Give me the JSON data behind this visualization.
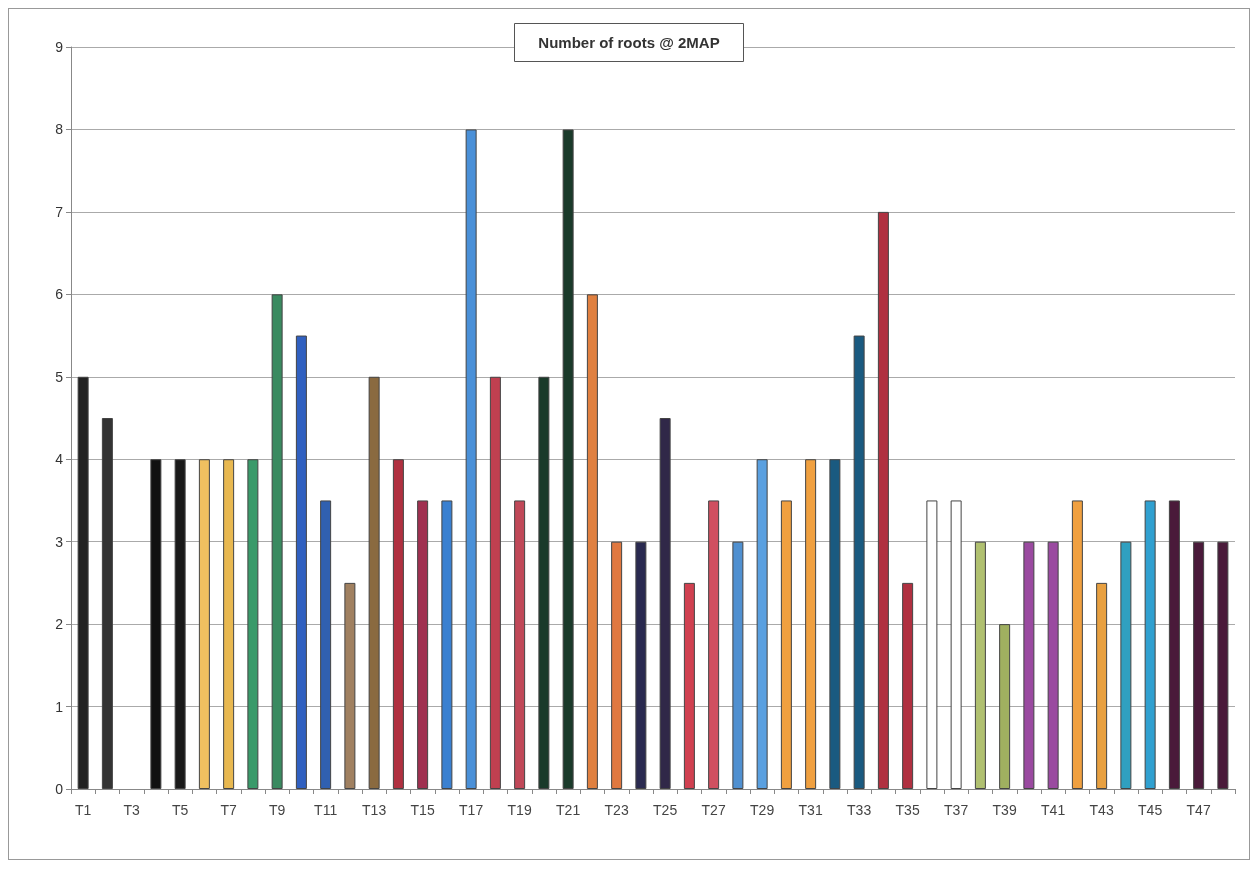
{
  "chart_data": {
    "type": "bar",
    "title": "Number of roots @ 2MAP",
    "categories": [
      "T1",
      null,
      "T3",
      null,
      "T5",
      null,
      "T7",
      null,
      "T9",
      null,
      "T11",
      null,
      "T13",
      null,
      "T15",
      null,
      "T17",
      null,
      "T19",
      null,
      "T21",
      null,
      "T23",
      null,
      "T25",
      null,
      "T27",
      null,
      "T29",
      null,
      "T31",
      null,
      "T33",
      null,
      "T35",
      null,
      "T37",
      null,
      "T39",
      null,
      "T41",
      null,
      "T43",
      null,
      "T45",
      null,
      "T47",
      null
    ],
    "values": [
      5,
      4.5,
      null,
      4,
      4,
      4,
      4,
      4,
      6,
      5.5,
      3.5,
      2.5,
      5,
      4,
      3.5,
      3.5,
      8,
      5,
      3.5,
      5,
      8,
      6,
      3,
      3,
      4.5,
      2.5,
      3.5,
      3,
      4,
      3.5,
      4,
      4,
      5.5,
      7,
      2.5,
      3.5,
      3.5,
      3,
      2,
      3,
      3,
      3.5,
      2.5,
      3,
      3.5,
      3.5,
      3,
      3
    ],
    "colors": [
      "#222222",
      "#333333",
      "#222222",
      "#111111",
      "#1a1a1a",
      "#f0c060",
      "#e8b850",
      "#3a9a6a",
      "#3a8a60",
      "#3060c0",
      "#3060b0",
      "#a08060",
      "#8a6a40",
      "#b03040",
      "#a03050",
      "#3a80d0",
      "#4a90d8",
      "#c04050",
      "#c04858",
      "#1a3a2a",
      "#1a3a2a",
      "#e08040",
      "#e07840",
      "#2a2a50",
      "#302848",
      "#d04050",
      "#d05060",
      "#5090d0",
      "#5aa0e0",
      "#f0a040",
      "#f0a040",
      "#1a5a80",
      "#1a5a80",
      "#b03040",
      "#b03040",
      "#ffffff",
      "#ffffff",
      "#b0c070",
      "#a0b060",
      "#9a4aa0",
      "#9a4aa0",
      "#f0a040",
      "#e8a040",
      "#30a0c0",
      "#30a0d0",
      "#4a1a3a",
      "#4a1a3a",
      "#4a1a3a"
    ],
    "ylim": [
      0,
      9
    ],
    "yticks": [
      0,
      1,
      2,
      3,
      4,
      5,
      6,
      7,
      8,
      9
    ],
    "grid": true
  }
}
